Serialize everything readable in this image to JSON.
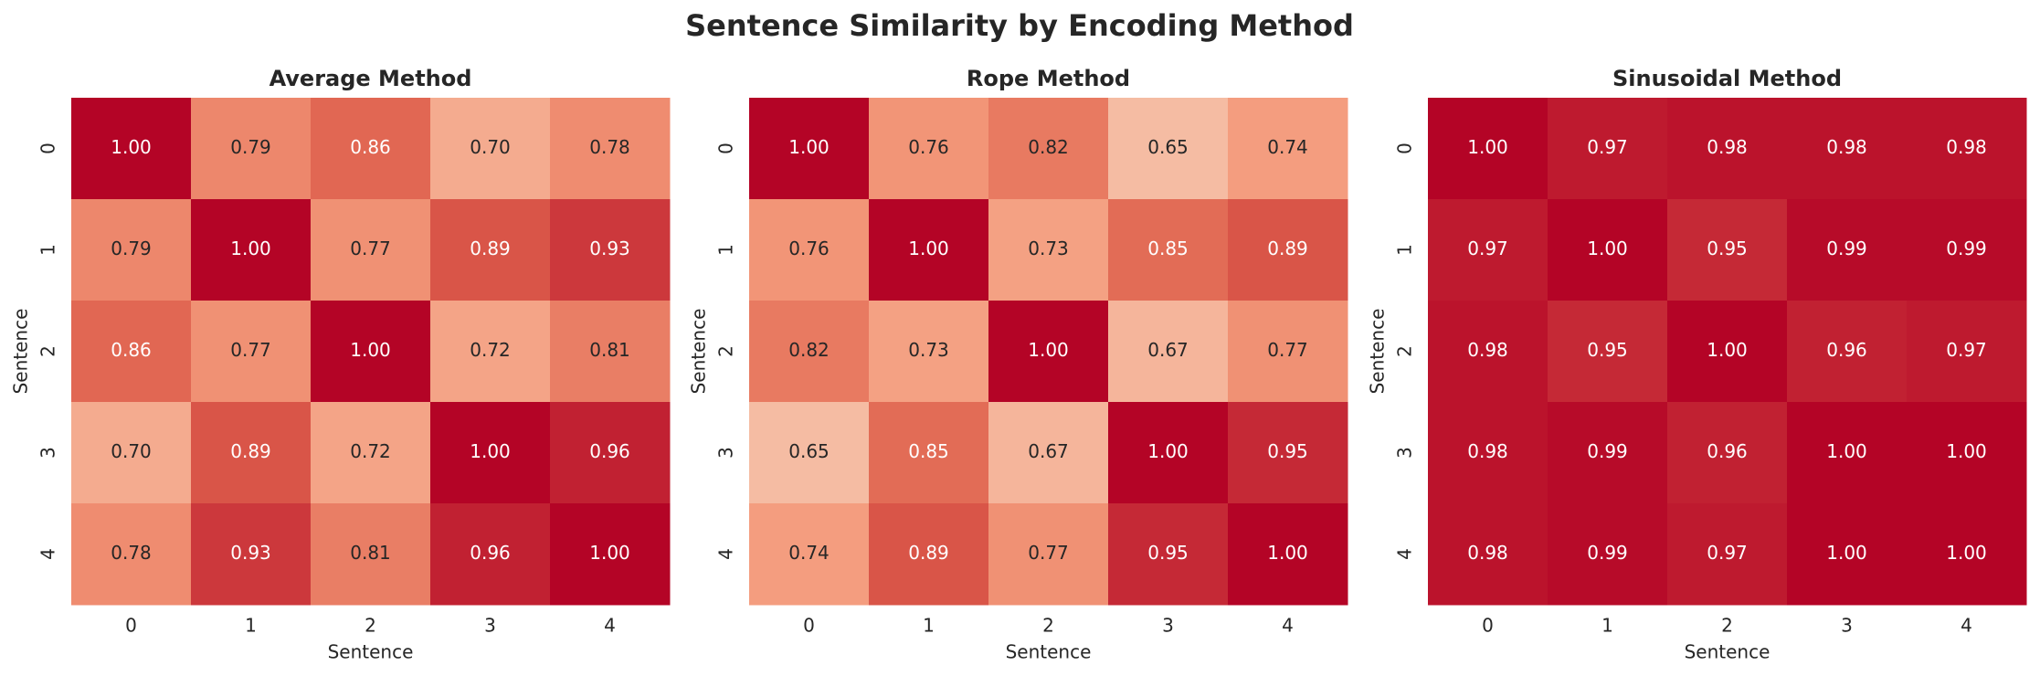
{
  "title": "Sentence Similarity by Encoding Method",
  "chart_data": [
    {
      "type": "heatmap",
      "title": "Average Method",
      "x_label": "Sentence",
      "y_label": "Sentence",
      "xticks": [
        0,
        1,
        2,
        3,
        4
      ],
      "yticks": [
        0,
        1,
        2,
        3,
        4
      ],
      "colormap": "coolwarm",
      "vmin": 0,
      "vmax": 1,
      "values": [
        [
          1,
          0.79,
          0.86,
          0.7,
          0.78
        ],
        [
          0.79,
          1,
          0.77,
          0.89,
          0.93
        ],
        [
          0.86,
          0.77,
          1,
          0.72,
          0.81
        ],
        [
          0.7,
          0.89,
          0.72,
          1,
          0.96
        ],
        [
          0.78,
          0.93,
          0.81,
          0.96,
          1
        ]
      ],
      "value_labels": [
        [
          "1.00",
          "0.79",
          "0.86",
          "0.70",
          "0.78"
        ],
        [
          "0.79",
          "1.00",
          "0.77",
          "0.89",
          "0.93"
        ],
        [
          "0.86",
          "0.77",
          "1.00",
          "0.72",
          "0.81"
        ],
        [
          "0.70",
          "0.89",
          "0.72",
          "1.00",
          "0.96"
        ],
        [
          "0.78",
          "0.93",
          "0.81",
          "0.96",
          "1.00"
        ]
      ]
    },
    {
      "type": "heatmap",
      "title": "Rope Method",
      "x_label": "Sentence",
      "y_label": "Sentence",
      "xticks": [
        0,
        1,
        2,
        3,
        4
      ],
      "yticks": [
        0,
        1,
        2,
        3,
        4
      ],
      "colormap": "coolwarm",
      "vmin": 0,
      "vmax": 1,
      "values": [
        [
          1,
          0.76,
          0.82,
          0.65,
          0.74
        ],
        [
          0.76,
          1,
          0.73,
          0.85,
          0.89
        ],
        [
          0.82,
          0.73,
          1,
          0.67,
          0.77
        ],
        [
          0.65,
          0.85,
          0.67,
          1,
          0.95
        ],
        [
          0.74,
          0.89,
          0.77,
          0.95,
          1
        ]
      ],
      "value_labels": [
        [
          "1.00",
          "0.76",
          "0.82",
          "0.65",
          "0.74"
        ],
        [
          "0.76",
          "1.00",
          "0.73",
          "0.85",
          "0.89"
        ],
        [
          "0.82",
          "0.73",
          "1.00",
          "0.67",
          "0.77"
        ],
        [
          "0.65",
          "0.85",
          "0.67",
          "1.00",
          "0.95"
        ],
        [
          "0.74",
          "0.89",
          "0.77",
          "0.95",
          "1.00"
        ]
      ]
    },
    {
      "type": "heatmap",
      "title": "Sinusoidal Method",
      "x_label": "Sentence",
      "y_label": "Sentence",
      "xticks": [
        0,
        1,
        2,
        3,
        4
      ],
      "yticks": [
        0,
        1,
        2,
        3,
        4
      ],
      "colormap": "coolwarm",
      "vmin": 0,
      "vmax": 1,
      "values": [
        [
          1,
          0.97,
          0.98,
          0.98,
          0.98
        ],
        [
          0.97,
          1,
          0.95,
          0.99,
          0.99
        ],
        [
          0.98,
          0.95,
          1,
          0.96,
          0.97
        ],
        [
          0.98,
          0.99,
          0.96,
          1,
          1
        ],
        [
          0.98,
          0.99,
          0.97,
          1,
          1
        ]
      ],
      "value_labels": [
        [
          "1.00",
          "0.97",
          "0.98",
          "0.98",
          "0.98"
        ],
        [
          "0.97",
          "1.00",
          "0.95",
          "0.99",
          "0.99"
        ],
        [
          "0.98",
          "0.95",
          "1.00",
          "0.96",
          "0.97"
        ],
        [
          "0.98",
          "0.99",
          "0.96",
          "1.00",
          "1.00"
        ],
        [
          "0.98",
          "0.99",
          "0.97",
          "1.00",
          "1.00"
        ]
      ]
    }
  ]
}
